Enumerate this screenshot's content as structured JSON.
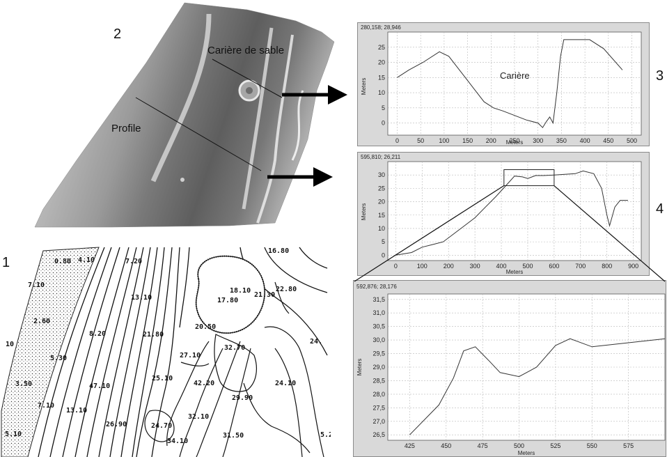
{
  "labels": {
    "fig1": "1",
    "fig2": "2",
    "fig3": "3",
    "fig4": "4",
    "quarry": "Carière de sable",
    "profile": "Profile",
    "chart_quarry_label": "Carière"
  },
  "topo_labels": [
    "0.80",
    "4.10",
    "7.20",
    "16.80",
    "7.10",
    "13.10",
    "18.10",
    "21.30",
    "22.80",
    "17.80",
    "2.60",
    "8.20",
    "21.80",
    "20.50",
    "32.70",
    "24.",
    "5.30",
    "27.10",
    "25.10",
    "42.20",
    "24.10",
    "3.50",
    "47.10",
    "29.90",
    "7.10",
    "13.10",
    "26.90",
    "32.10",
    "31.50",
    "5.2",
    "5.10",
    "24.70",
    "34.10",
    "10"
  ],
  "chart_data": [
    {
      "type": "line",
      "coord": "280,158; 28,946",
      "xlabel": "Meters",
      "ylabel": "Meters",
      "xlim": [
        -20,
        520
      ],
      "ylim": [
        -4,
        30
      ],
      "xticks": [
        0,
        50,
        100,
        150,
        200,
        250,
        300,
        350,
        400,
        450,
        500
      ],
      "yticks": [
        0,
        5,
        10,
        15,
        20,
        25
      ],
      "series": [
        {
          "values": [
            [
              0,
              15
            ],
            [
              25,
              17.5
            ],
            [
              55,
              20
            ],
            [
              90,
              23.5
            ],
            [
              110,
              22
            ],
            [
              130,
              18
            ],
            [
              150,
              14
            ],
            [
              170,
              10
            ],
            [
              185,
              7
            ],
            [
              205,
              5
            ],
            [
              225,
              4
            ],
            [
              250,
              2.5
            ],
            [
              275,
              1
            ],
            [
              300,
              0
            ],
            [
              310,
              -1.5
            ],
            [
              318,
              0.5
            ],
            [
              325,
              2
            ],
            [
              332,
              0
            ],
            [
              340,
              10
            ],
            [
              348,
              22
            ],
            [
              355,
              27.5
            ],
            [
              385,
              27.5
            ],
            [
              410,
              27.5
            ],
            [
              440,
              24.5
            ],
            [
              480,
              17.5
            ]
          ]
        }
      ]
    },
    {
      "type": "line",
      "coord": "595,810; 26,211",
      "xlabel": "Meters",
      "ylabel": "Meters",
      "xlim": [
        -30,
        930
      ],
      "ylim": [
        -2,
        35
      ],
      "xticks": [
        0,
        100,
        200,
        300,
        400,
        500,
        600,
        700,
        800,
        900
      ],
      "yticks": [
        0,
        5,
        10,
        15,
        20,
        25,
        30
      ],
      "series": [
        {
          "values": [
            [
              0,
              0
            ],
            [
              60,
              1
            ],
            [
              100,
              3
            ],
            [
              140,
              4
            ],
            [
              180,
              5
            ],
            [
              220,
              8
            ],
            [
              260,
              11
            ],
            [
              300,
              14
            ],
            [
              340,
              18
            ],
            [
              380,
              22
            ],
            [
              420,
              26.3
            ],
            [
              450,
              29.6
            ],
            [
              480,
              29.3
            ],
            [
              500,
              28.7
            ],
            [
              530,
              29.8
            ],
            [
              560,
              29.8
            ],
            [
              600,
              30
            ],
            [
              680,
              30.5
            ],
            [
              710,
              31.5
            ],
            [
              750,
              30.5
            ],
            [
              780,
              25
            ],
            [
              800,
              15
            ],
            [
              810,
              11
            ],
            [
              830,
              18
            ],
            [
              850,
              20.5
            ],
            [
              880,
              20.5
            ]
          ]
        }
      ],
      "zoom_box": {
        "x": [
          410,
          600
        ],
        "y": [
          26,
          32
        ]
      }
    },
    {
      "type": "line",
      "coord": "592,876; 28,176",
      "xlabel": "Meters",
      "ylabel": "Meters",
      "xlim": [
        410,
        600
      ],
      "ylim": [
        26.3,
        31.7
      ],
      "xticks": [
        425,
        450,
        475,
        500,
        525,
        550,
        575
      ],
      "yticks": [
        "26,5",
        "27,0",
        "27,5",
        "28,0",
        "28,5",
        "29,0",
        "29,5",
        "30,0",
        "30,5",
        "31,0",
        "31,5"
      ],
      "series": [
        {
          "values": [
            [
              425,
              26.5
            ],
            [
              445,
              27.6
            ],
            [
              455,
              28.6
            ],
            [
              462,
              29.6
            ],
            [
              470,
              29.75
            ],
            [
              480,
              29.2
            ],
            [
              487,
              28.8
            ],
            [
              500,
              28.65
            ],
            [
              512,
              29
            ],
            [
              525,
              29.8
            ],
            [
              535,
              30.05
            ],
            [
              550,
              29.75
            ],
            [
              575,
              29.9
            ],
            [
              600,
              30.05
            ]
          ]
        }
      ]
    }
  ]
}
